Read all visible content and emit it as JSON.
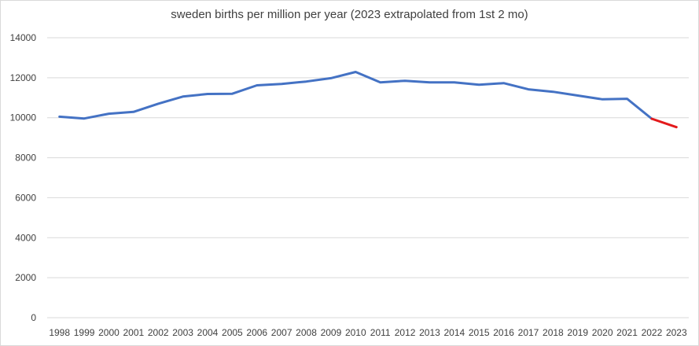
{
  "chart_data": {
    "type": "line",
    "title": "sweden births per million per year (2023 extrapolated from 1st 2 mo)",
    "xlabel": "",
    "ylabel": "",
    "ylim": [
      0,
      14000
    ],
    "yticks": [
      "0",
      "2000",
      "4000",
      "6000",
      "8000",
      "10000",
      "12000",
      "14000"
    ],
    "grid": true,
    "legend": "none",
    "categories": [
      "1998",
      "1999",
      "2000",
      "2001",
      "2002",
      "2003",
      "2004",
      "2005",
      "2006",
      "2007",
      "2008",
      "2009",
      "2010",
      "2011",
      "2012",
      "2013",
      "2014",
      "2015",
      "2016",
      "2017",
      "2018",
      "2019",
      "2020",
      "2021",
      "2022",
      "2023"
    ],
    "series": [
      {
        "name": "",
        "color": "#4472c4",
        "values": [
          10050,
          9960,
          10200,
          10290,
          10700,
          11060,
          11190,
          11200,
          11620,
          11690,
          11810,
          11980,
          12290,
          11770,
          11850,
          11770,
          11770,
          11650,
          11730,
          11420,
          11300,
          11110,
          10920,
          10950,
          9950,
          null
        ]
      },
      {
        "name": "",
        "color": "#e31a1c",
        "values": [
          null,
          null,
          null,
          null,
          null,
          null,
          null,
          null,
          null,
          null,
          null,
          null,
          null,
          null,
          null,
          null,
          null,
          null,
          null,
          null,
          null,
          null,
          null,
          null,
          9950,
          9530
        ]
      }
    ]
  }
}
